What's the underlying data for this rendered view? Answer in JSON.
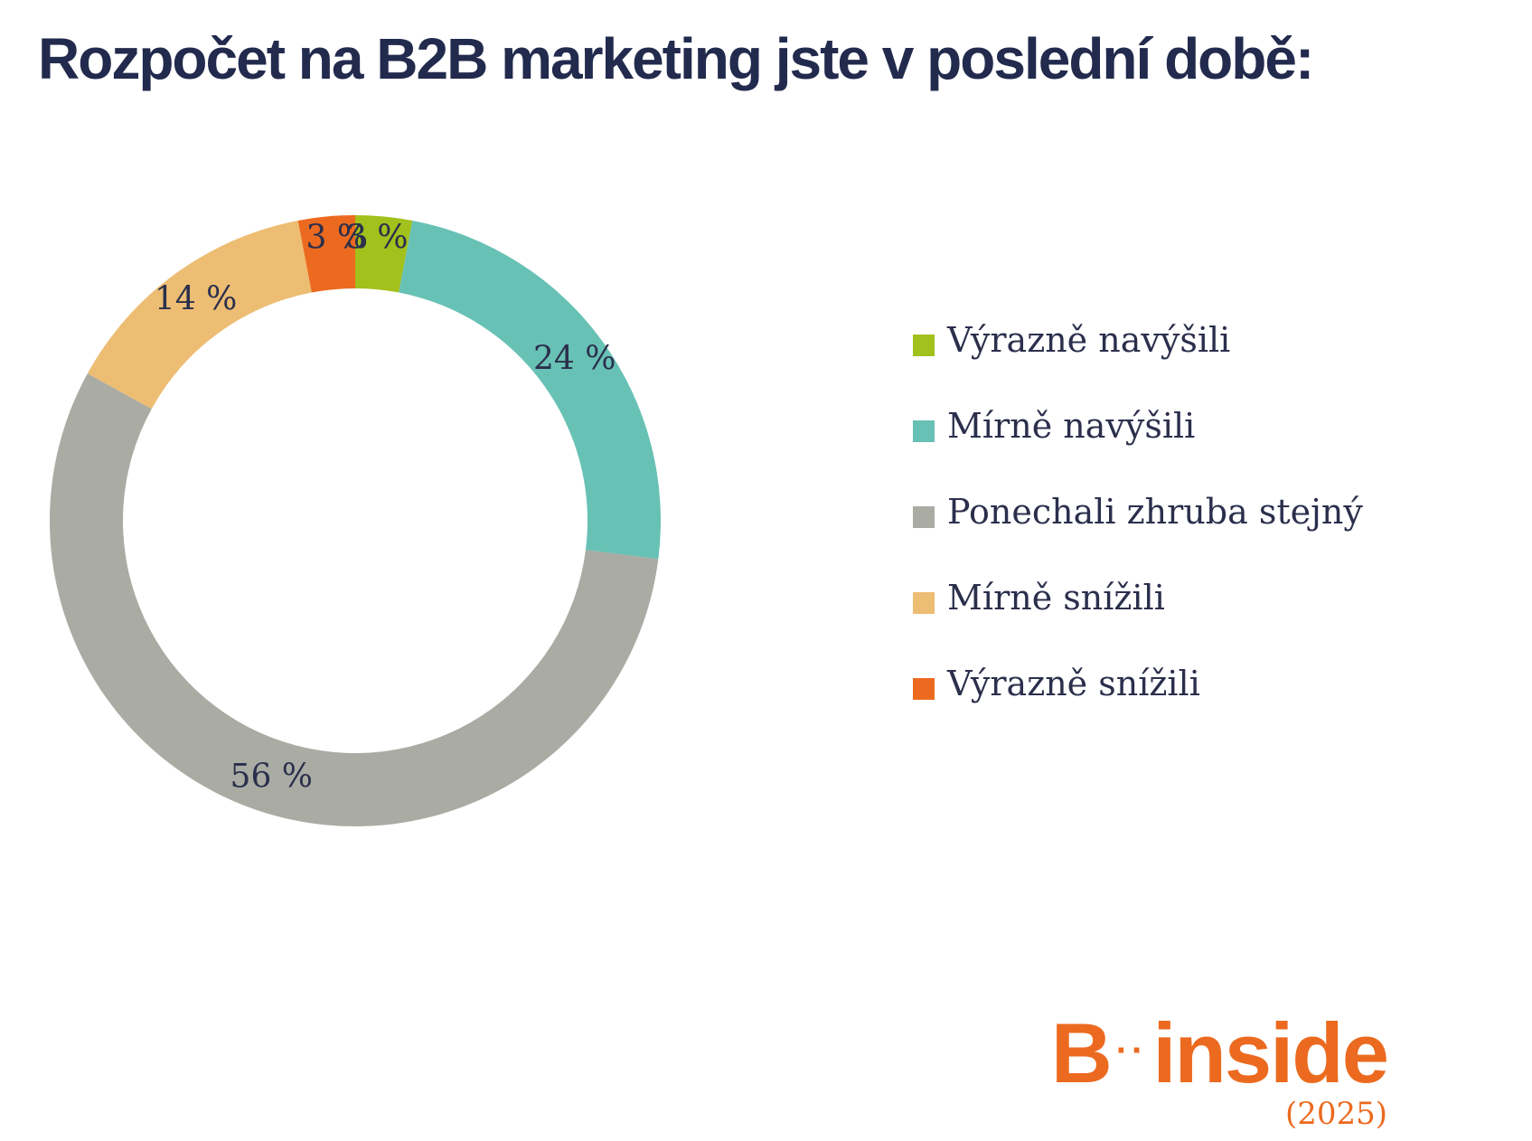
{
  "title": "Rozpočet na B2B marketing jste v poslední době:",
  "colors": {
    "title": "#222a4d",
    "label_text": "#2b2f4c",
    "brand": "#ec6a1f"
  },
  "chart_data": {
    "type": "pie",
    "donut": true,
    "title": "Rozpočet na B2B marketing jste v poslední době:",
    "legend_position": "right",
    "categories": [
      "Výrazně navýšili",
      "Mírně navýšili",
      "Ponechali zhruba stejný",
      "Mírně snížili",
      "Výrazně snížili"
    ],
    "values": [
      3,
      24,
      56,
      14,
      3
    ],
    "labels": [
      "3 %",
      "24 %",
      "56 %",
      "14 %",
      "3 %"
    ],
    "colors": [
      "#a2c11c",
      "#68c1b5",
      "#aaaba3",
      "#edbd73",
      "#ec6a1f"
    ],
    "unit": "%"
  },
  "brand": {
    "left": "B",
    "dots": "··",
    "right": "inside",
    "year": "(2025)"
  }
}
